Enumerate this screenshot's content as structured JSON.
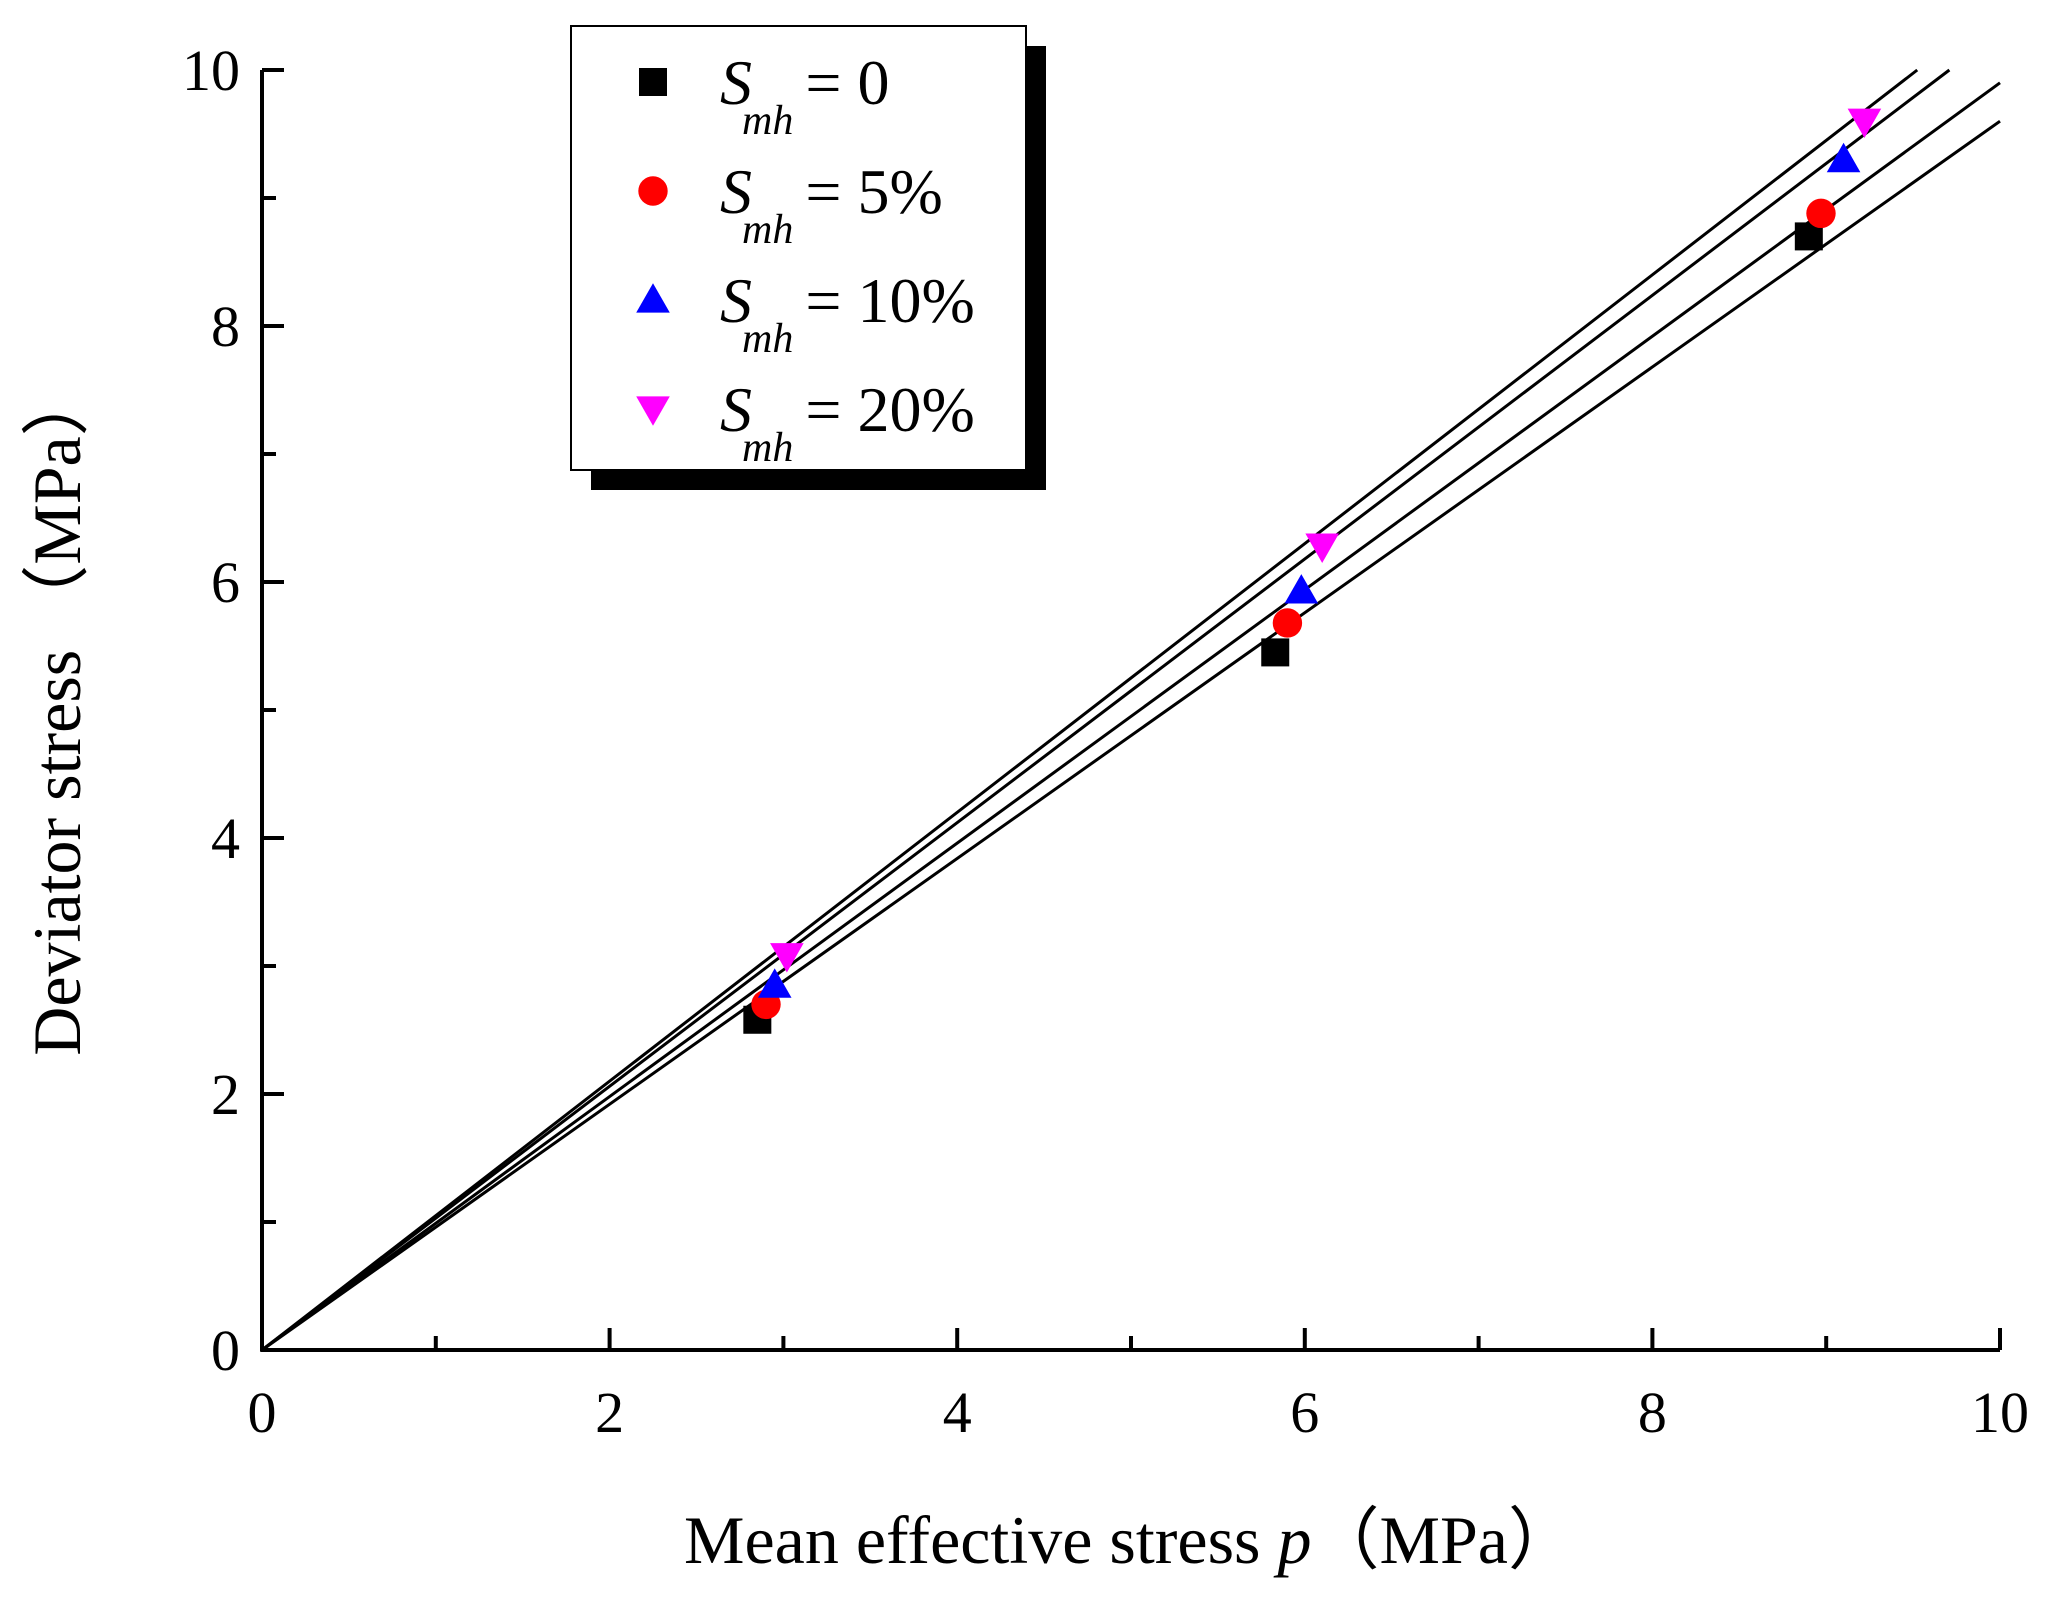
{
  "chart_data": {
    "type": "scatter",
    "xlabel": "Mean effective stress",
    "xlabel_symbol": "p",
    "xlabel_unit": "（MPa）",
    "ylabel": "Deviator stress （MPa）",
    "xlim": [
      0,
      10
    ],
    "ylim": [
      0,
      10
    ],
    "xticks": [
      0,
      2,
      4,
      6,
      8,
      10
    ],
    "yticks": [
      0,
      2,
      4,
      6,
      8,
      10
    ],
    "xtick_labels": [
      "0",
      "2",
      "4",
      "6",
      "8",
      "10"
    ],
    "ytick_labels": [
      "0",
      "2",
      "4",
      "6",
      "8",
      "10"
    ],
    "legend_position": "top-left",
    "legend_symbol": "S",
    "legend_subscript": "mh",
    "series": [
      {
        "name": "S_mh = 0",
        "legend_value": "= 0",
        "marker": "square",
        "color": "#000000",
        "fit_slope": 0.96,
        "points": [
          {
            "x": 2.85,
            "y": 2.58
          },
          {
            "x": 5.83,
            "y": 5.45
          },
          {
            "x": 8.9,
            "y": 8.7
          }
        ]
      },
      {
        "name": "S_mh = 5%",
        "legend_value": "= 5%",
        "marker": "circle",
        "color": "#ff0000",
        "fit_slope": 0.99,
        "points": [
          {
            "x": 2.9,
            "y": 2.7
          },
          {
            "x": 5.9,
            "y": 5.68
          },
          {
            "x": 8.97,
            "y": 8.88
          }
        ]
      },
      {
        "name": "S_mh = 10%",
        "legend_value": "= 10%",
        "marker": "triangle-up",
        "color": "#0000ff",
        "fit_slope": 1.03,
        "points": [
          {
            "x": 2.95,
            "y": 2.85
          },
          {
            "x": 5.98,
            "y": 5.93
          },
          {
            "x": 9.1,
            "y": 9.3
          }
        ]
      },
      {
        "name": "S_mh = 20%",
        "legend_value": "= 20%",
        "marker": "triangle-down",
        "color": "#ff00ff",
        "fit_slope": 1.05,
        "points": [
          {
            "x": 3.02,
            "y": 3.08
          },
          {
            "x": 6.1,
            "y": 6.28
          },
          {
            "x": 9.22,
            "y": 9.6
          }
        ]
      }
    ]
  }
}
